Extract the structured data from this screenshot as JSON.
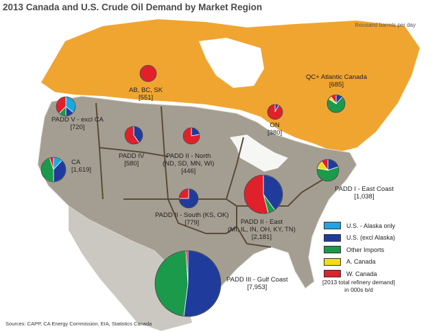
{
  "title": "2013 Canada and U.S. Crude Oil Demand by Market Region",
  "units": "thousand barrels per day",
  "legend": [
    {
      "label": "U.S. - Alaska only",
      "color": "#1ca7e0"
    },
    {
      "label": "U.S. (excl Alaska)",
      "color": "#1f3c9c"
    },
    {
      "label": "Other Imports",
      "color": "#1a9a4a"
    },
    {
      "label": "A. Canada",
      "color": "#f2dd1a"
    },
    {
      "label": "W. Canada",
      "color": "#e0202a"
    }
  ],
  "note": {
    "line1": "[2013 total refinery demand]",
    "line2": "in 000s b/d"
  },
  "sources": "Sources: CAPP, CA Energy Commission, EIA, Statistics Canada",
  "regions": [
    {
      "id": "ab-bc-sk",
      "name": "AB, BC, SK",
      "value": "[551]",
      "shares": {
        "alaska": 0,
        "us": 0,
        "other": 0,
        "acanada": 0,
        "wcanada": 100
      }
    },
    {
      "id": "on",
      "name": "ON",
      "value": "[380]",
      "shares": {
        "alaska": 0,
        "us": 8,
        "other": 0,
        "acanada": 0,
        "wcanada": 92
      }
    },
    {
      "id": "qc-atlantic",
      "name": "QC+ Atlantic Canada",
      "value": "[685]",
      "shares": {
        "alaska": 0,
        "us": 12,
        "other": 72,
        "acanada": 6,
        "wcanada": 10
      }
    },
    {
      "id": "padd-v",
      "name": "PADD V - excl CA",
      "value": "[720]",
      "shares": {
        "alaska": 36,
        "us": 14,
        "other": 12,
        "acanada": 0,
        "wcanada": 38
      }
    },
    {
      "id": "ca",
      "name": "CA",
      "value": "[1,619]",
      "shares": {
        "alaska": 12,
        "us": 38,
        "other": 45,
        "acanada": 0,
        "wcanada": 5
      }
    },
    {
      "id": "padd-iv",
      "name": "PADD IV",
      "value": "[580]",
      "shares": {
        "alaska": 0,
        "us": 40,
        "other": 0,
        "acanada": 0,
        "wcanada": 60
      }
    },
    {
      "id": "padd-ii-north",
      "name": "PADD II - North",
      "line2": "(ND, SD, MN, WI)",
      "value": "[446]",
      "shares": {
        "alaska": 0,
        "us": 22,
        "other": 0,
        "acanada": 0,
        "wcanada": 78
      }
    },
    {
      "id": "padd-ii-south",
      "name": "PADD II - South (KS, OK)",
      "value": "[779]",
      "shares": {
        "alaska": 0,
        "us": 75,
        "other": 0,
        "acanada": 0,
        "wcanada": 25
      }
    },
    {
      "id": "padd-ii-east",
      "name": "PADD II - East",
      "line2": "(MI, IL, IN, OH, KY, TN)",
      "value": "[2,181]",
      "shares": {
        "alaska": 0,
        "us": 40,
        "other": 6,
        "acanada": 0,
        "wcanada": 54
      }
    },
    {
      "id": "padd-i",
      "name": "PADD I - East Coast",
      "value": "[1,038]",
      "shares": {
        "alaska": 0,
        "us": 20,
        "other": 58,
        "acanada": 12,
        "wcanada": 10
      }
    },
    {
      "id": "padd-iii",
      "name": "PADD III - Gulf Coast",
      "value": "[7,953]",
      "shares": {
        "alaska": 0,
        "us": 52,
        "other": 47,
        "acanada": 0,
        "wcanada": 1
      }
    }
  ]
}
